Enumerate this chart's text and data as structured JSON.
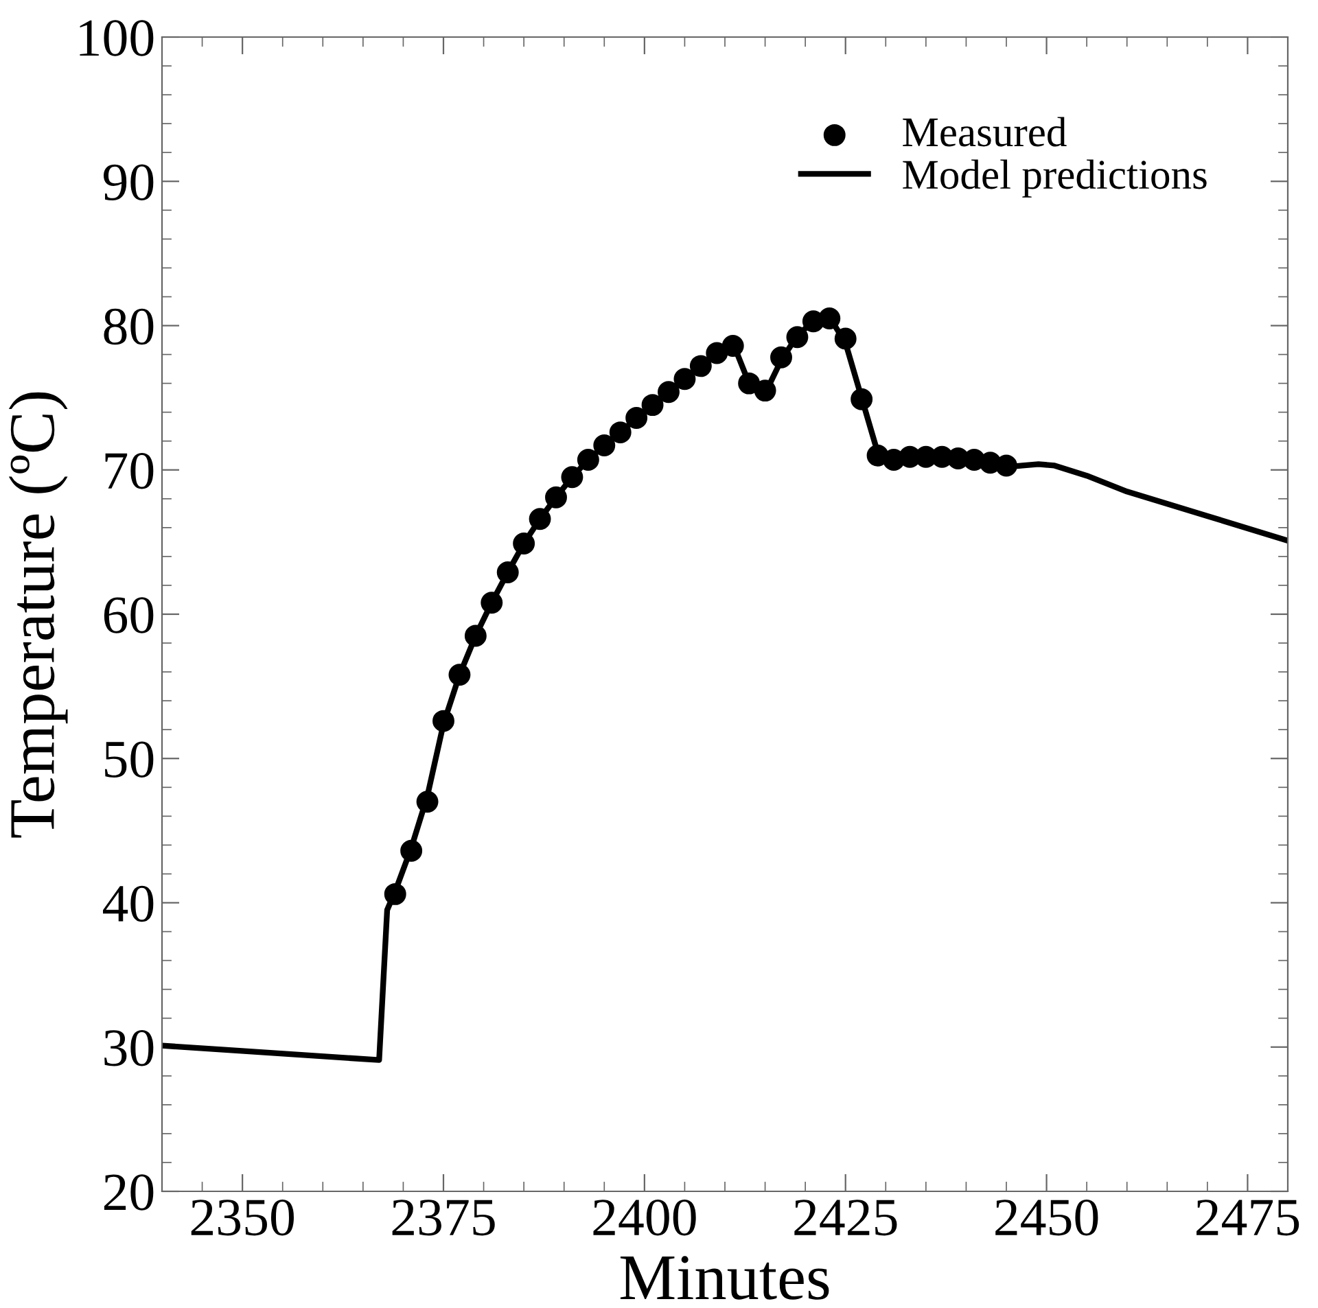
{
  "chart_data": {
    "type": "scatter",
    "xlabel": "Minutes",
    "ylabel": "Temperature (ºC)",
    "xlim": [
      2340,
      2480
    ],
    "xticks": [
      2350,
      2375,
      2400,
      2425,
      2450,
      2475
    ],
    "ylim": [
      20,
      100
    ],
    "yticks": [
      20,
      30,
      40,
      50,
      60,
      70,
      80,
      90,
      100
    ],
    "grid": false,
    "legend": "top right",
    "series": [
      {
        "name": "Measured",
        "marker": "circle",
        "color": "#000000",
        "x": [
          2369,
          2371,
          2373,
          2375,
          2377,
          2379,
          2381,
          2383,
          2385,
          2387,
          2389,
          2391,
          2393,
          2395,
          2397,
          2399,
          2401,
          2403,
          2405,
          2407,
          2409,
          2411,
          2413,
          2415,
          2417,
          2419,
          2421,
          2423,
          2425,
          2427,
          2429,
          2431,
          2433,
          2435,
          2437,
          2439,
          2441,
          2443,
          2445
        ],
        "values": [
          40.6,
          43.6,
          47.0,
          52.6,
          55.8,
          58.5,
          60.8,
          62.9,
          64.9,
          66.6,
          68.1,
          69.5,
          70.7,
          71.7,
          72.6,
          73.6,
          74.5,
          75.4,
          76.3,
          77.2,
          78.1,
          78.6,
          76.0,
          75.5,
          77.8,
          79.2,
          80.3,
          80.5,
          79.1,
          74.9,
          71.0,
          70.7,
          70.9,
          70.9,
          70.9,
          70.8,
          70.7,
          70.5,
          70.3
        ]
      },
      {
        "name": "Model predictions",
        "type": "line",
        "line_style": "solid",
        "color": "#000000",
        "x": [
          2340,
          2367,
          2368,
          2369,
          2371,
          2373,
          2375,
          2377,
          2379,
          2381,
          2383,
          2385,
          2387,
          2389,
          2391,
          2393,
          2395,
          2397,
          2399,
          2401,
          2403,
          2405,
          2407,
          2409,
          2411,
          2413,
          2415,
          2417,
          2419,
          2421,
          2423,
          2425,
          2427,
          2429,
          2431,
          2435,
          2440,
          2445,
          2447,
          2449,
          2451,
          2455,
          2460,
          2470,
          2480
        ],
        "values": [
          30.1,
          29.1,
          39.5,
          40.8,
          43.8,
          47.4,
          52.4,
          55.8,
          58.5,
          60.8,
          62.9,
          64.9,
          66.6,
          68.1,
          69.5,
          70.7,
          71.7,
          72.6,
          73.6,
          74.5,
          75.4,
          76.3,
          77.2,
          78.1,
          78.8,
          76.0,
          75.3,
          77.6,
          79.3,
          80.3,
          80.6,
          78.8,
          75.0,
          71.2,
          70.8,
          70.8,
          70.7,
          70.2,
          70.3,
          70.4,
          70.3,
          69.6,
          68.5,
          66.8,
          65.1
        ]
      }
    ]
  }
}
